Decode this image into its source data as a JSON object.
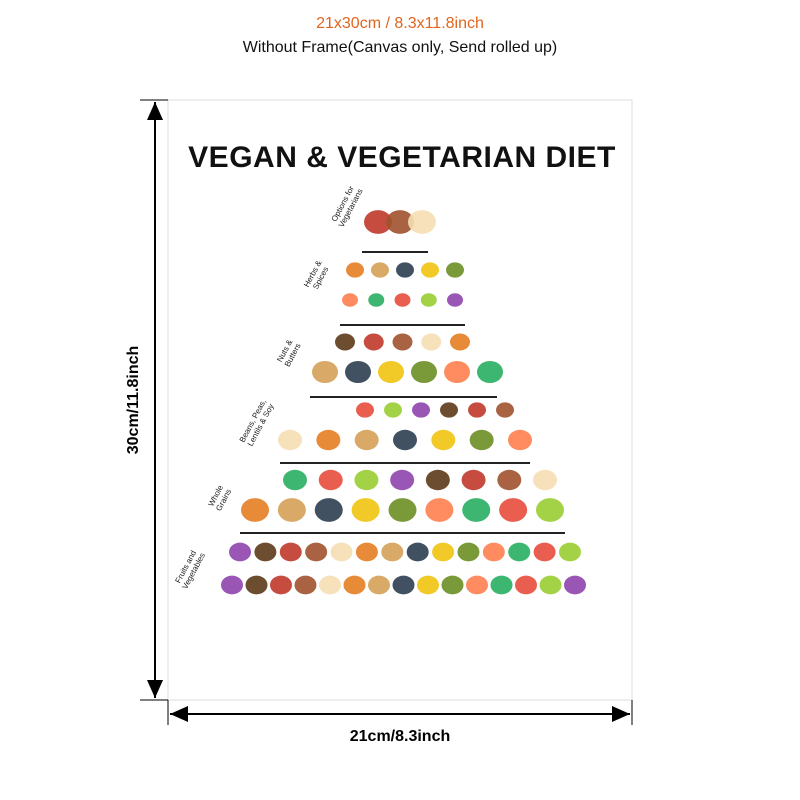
{
  "header": {
    "size": "21x30cm / 8.3x11.8inch",
    "note": "Without Frame(Canvas only, Send rolled up)"
  },
  "dimensions": {
    "height": "30cm/11.8inch",
    "width": "21cm/8.3inch"
  },
  "poster": {
    "title": "VEGAN & VEGETARIAN DIET",
    "tiers": [
      {
        "label": [
          "Options for",
          "Vegetarians"
        ]
      },
      {
        "label": [
          "Herbs &",
          "Spices"
        ]
      },
      {
        "label": [
          "Nuts &",
          "Butters"
        ]
      },
      {
        "label": [
          "Beans, Peas,",
          "Lentils & Soy"
        ]
      },
      {
        "label": [
          "Whole",
          "Grains"
        ]
      },
      {
        "label": [
          "Fruits and",
          "Vegetables"
        ]
      }
    ]
  }
}
